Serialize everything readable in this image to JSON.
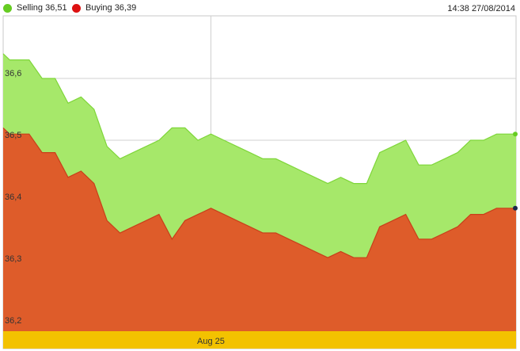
{
  "legend": {
    "selling_label": "Selling 36,51",
    "buying_label": "Buying 36,39",
    "timestamp": "14:38 27/08/2014"
  },
  "colors": {
    "selling": "#a6e86a",
    "selling_line": "#7fd63a",
    "selling_dot": "#66cc22",
    "buying": "#de5c2a",
    "buying_line": "#c8401a",
    "buying_dot": "#dd1111",
    "xaxis_band": "#f3c200",
    "grid": "#d0d0d0"
  },
  "chart_data": {
    "type": "area",
    "title": "",
    "xlabel": "",
    "ylabel": "",
    "ylim": [
      36.2,
      36.7
    ],
    "yticks": [
      36.2,
      36.3,
      36.4,
      36.5,
      36.6
    ],
    "ytick_labels": [
      "36,2",
      "36,3",
      "36,4",
      "36,5",
      "36,6"
    ],
    "xticks": [
      {
        "x": 16,
        "label": "Aug 25"
      }
    ],
    "grid": true,
    "legend_position": "top-left",
    "x": [
      0,
      0.5,
      2,
      3,
      4,
      5,
      6,
      7,
      8,
      9,
      10,
      11,
      12,
      12.5,
      13,
      14,
      15,
      16,
      17,
      18,
      19,
      20,
      21,
      22,
      23,
      24,
      25,
      26,
      27,
      28,
      29,
      30,
      31,
      32,
      33,
      34,
      35,
      36,
      37,
      38,
      39,
      39.5
    ],
    "series": [
      {
        "name": "Selling",
        "values": [
          36.64,
          36.63,
          36.63,
          36.6,
          36.6,
          36.56,
          36.57,
          36.55,
          36.49,
          36.47,
          36.48,
          36.49,
          36.5,
          36.51,
          36.52,
          36.52,
          36.5,
          36.51,
          36.5,
          36.49,
          36.48,
          36.47,
          36.47,
          36.46,
          36.45,
          36.44,
          36.43,
          36.44,
          36.43,
          36.43,
          36.48,
          36.49,
          36.5,
          36.46,
          36.46,
          36.47,
          36.48,
          36.5,
          36.5,
          36.51,
          36.51,
          36.51
        ]
      },
      {
        "name": "Buying",
        "values": [
          36.52,
          36.51,
          36.51,
          36.48,
          36.48,
          36.44,
          36.45,
          36.43,
          36.37,
          36.35,
          36.36,
          36.37,
          36.38,
          36.36,
          36.34,
          36.37,
          36.38,
          36.39,
          36.38,
          36.37,
          36.36,
          36.35,
          36.35,
          36.34,
          36.33,
          36.32,
          36.31,
          36.32,
          36.31,
          36.31,
          36.36,
          36.37,
          36.38,
          36.34,
          36.34,
          36.35,
          36.36,
          36.38,
          36.38,
          36.39,
          36.39,
          36.39
        ]
      }
    ]
  }
}
